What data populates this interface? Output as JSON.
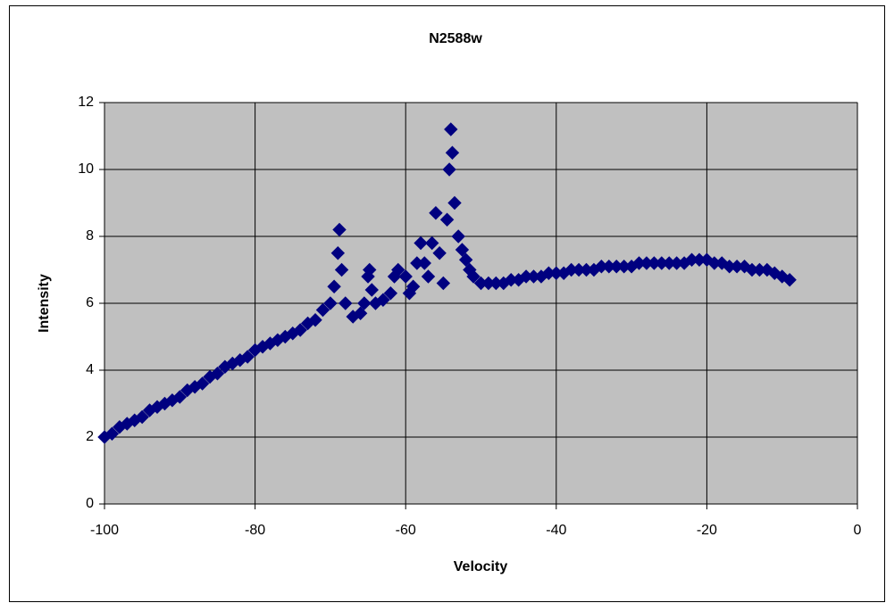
{
  "chart_data": {
    "type": "scatter",
    "title": "N2588w",
    "x_label": "Velocity",
    "y_label": "Intensity",
    "x": [
      -100,
      -99,
      -98,
      -97,
      -96,
      -95,
      -94,
      -93,
      -92,
      -91,
      -90,
      -89,
      -88,
      -87,
      -86,
      -85,
      -84,
      -83,
      -82,
      -81,
      -80,
      -79,
      -78,
      -77,
      -76,
      -75,
      -74,
      -73,
      -72,
      -71,
      -70,
      -69.5,
      -69,
      -68.8,
      -68.5,
      -68,
      -67,
      -66,
      -65.5,
      -65,
      -64.8,
      -64.5,
      -64,
      -63,
      -62,
      -61.5,
      -61,
      -60,
      -59.5,
      -59,
      -58.5,
      -58,
      -57.5,
      -57,
      -56.5,
      -56,
      -55.5,
      -55,
      -54.5,
      -54.2,
      -54,
      -53.8,
      -53.5,
      -53,
      -52.5,
      -52,
      -51.5,
      -51,
      -50,
      -49,
      -48,
      -47,
      -46,
      -45,
      -44,
      -43,
      -42,
      -41,
      -40,
      -39,
      -38,
      -37,
      -36,
      -35,
      -34,
      -33,
      -32,
      -31,
      -30,
      -29,
      -28,
      -27,
      -26,
      -25,
      -24,
      -23,
      -22,
      -21,
      -20,
      -19,
      -18,
      -17,
      -16,
      -15,
      -14,
      -13,
      -12,
      -11,
      -10,
      -9
    ],
    "values": [
      2.0,
      2.1,
      2.3,
      2.4,
      2.5,
      2.6,
      2.8,
      2.9,
      3.0,
      3.1,
      3.2,
      3.4,
      3.5,
      3.6,
      3.8,
      3.9,
      4.1,
      4.2,
      4.3,
      4.4,
      4.6,
      4.7,
      4.8,
      4.9,
      5.0,
      5.1,
      5.2,
      5.4,
      5.5,
      5.8,
      6.0,
      6.5,
      7.5,
      8.2,
      7.0,
      6.0,
      5.6,
      5.7,
      6.0,
      6.8,
      7.0,
      6.4,
      6.0,
      6.1,
      6.3,
      6.8,
      7.0,
      6.8,
      6.3,
      6.5,
      7.2,
      7.8,
      7.2,
      6.8,
      7.8,
      8.7,
      7.5,
      6.6,
      8.5,
      10.0,
      11.2,
      10.5,
      9.0,
      8.0,
      7.6,
      7.3,
      7.0,
      6.8,
      6.6,
      6.6,
      6.6,
      6.6,
      6.7,
      6.7,
      6.8,
      6.8,
      6.8,
      6.9,
      6.9,
      6.9,
      7.0,
      7.0,
      7.0,
      7.0,
      7.1,
      7.1,
      7.1,
      7.1,
      7.1,
      7.2,
      7.2,
      7.2,
      7.2,
      7.2,
      7.2,
      7.2,
      7.3,
      7.3,
      7.3,
      7.2,
      7.2,
      7.1,
      7.1,
      7.1,
      7.0,
      7.0,
      7.0,
      6.9,
      6.8,
      6.7
    ],
    "color": "#000080",
    "plot_background": "#c0c0c0",
    "grid": true,
    "xlim": [
      -100,
      0
    ],
    "xticks": [
      -100,
      -80,
      -60,
      -40,
      -20,
      0
    ],
    "ylim": [
      0,
      12
    ],
    "yticks": [
      0,
      2,
      4,
      6,
      8,
      10,
      12
    ]
  }
}
